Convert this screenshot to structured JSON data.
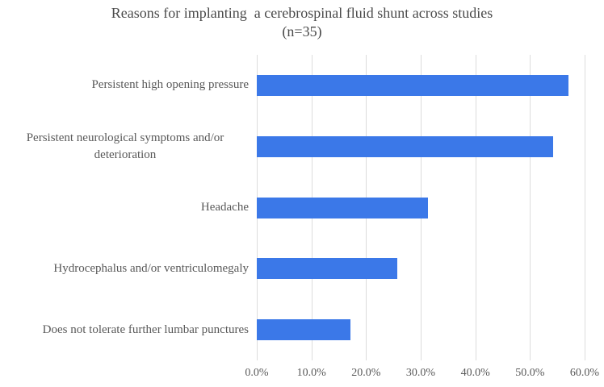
{
  "title": "Reasons for implanting  a cerebrospinal fluid shunt across studies",
  "subtitle": "(n=35)",
  "chart_data": {
    "type": "bar",
    "orientation": "horizontal",
    "title": "Reasons for implanting a cerebrospinal fluid shunt across studies (n=35)",
    "categories": [
      "Persistent high opening pressure",
      "Persistent neurological symptoms and/or deterioration",
      "Headache",
      "Hydrocephalus and/or ventriculomegaly",
      "Does not tolerate further lumbar punctures"
    ],
    "values": [
      57.1,
      54.3,
      31.4,
      25.7,
      17.1
    ],
    "unit": "percent",
    "xlabel": "",
    "ylabel": "",
    "xlim": [
      0,
      60
    ],
    "x_tick_labels": [
      "0.0%",
      "10.0%",
      "20.0%",
      "30.0%",
      "40.0%",
      "50.0%",
      "60.0%"
    ],
    "grid": "vertical gridlines on",
    "legend": "none",
    "bar_color": "#3b78e8",
    "gridline_color": "#dcdcdc",
    "text_color": "#595959"
  }
}
